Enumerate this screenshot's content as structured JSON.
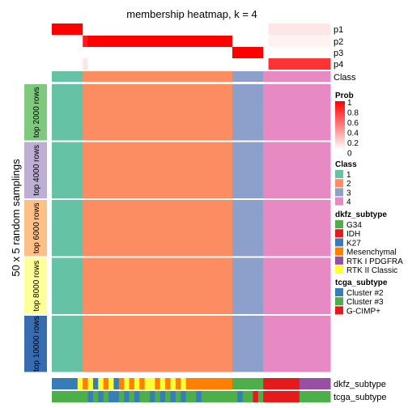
{
  "chart_data": {
    "type": "heatmap",
    "title": "membership heatmap, k = 4",
    "ylabel": "50 x 5 random samplings",
    "n_columns": 54,
    "top_rows": [
      {
        "label": "p1",
        "values": [
          1,
          1,
          1,
          1,
          1,
          1,
          0,
          0,
          0,
          0,
          0,
          0,
          0,
          0,
          0,
          0,
          0,
          0,
          0,
          0,
          0,
          0,
          0,
          0,
          0,
          0,
          0,
          0,
          0,
          0,
          0,
          0,
          0,
          0,
          0,
          0,
          0,
          0,
          0,
          0,
          0,
          0,
          0.1,
          0.1,
          0.1,
          0.1,
          0.1,
          0.1,
          0.1,
          0.1,
          0.1,
          0.1,
          0.1,
          0.1
        ]
      },
      {
        "label": "p2",
        "values": [
          0,
          0,
          0,
          0,
          0,
          0,
          0.9,
          1,
          1,
          1,
          1,
          1,
          1,
          1,
          1,
          1,
          1,
          1,
          1,
          1,
          1,
          1,
          1,
          1,
          1,
          1,
          1,
          1,
          1,
          1,
          1,
          1,
          1,
          1,
          1,
          0,
          0,
          0,
          0,
          0,
          0,
          0,
          0.05,
          0.05,
          0.05,
          0.05,
          0.05,
          0.05,
          0.05,
          0.05,
          0.05,
          0.05,
          0.05,
          0.05
        ]
      },
      {
        "label": "p3",
        "values": [
          0,
          0,
          0,
          0,
          0,
          0,
          0,
          0,
          0,
          0,
          0,
          0,
          0,
          0,
          0,
          0,
          0,
          0,
          0,
          0,
          0,
          0,
          0,
          0,
          0,
          0,
          0,
          0,
          0,
          0,
          0,
          0,
          0,
          0,
          0,
          1,
          1,
          1,
          1,
          1,
          1,
          0,
          0,
          0,
          0,
          0,
          0,
          0,
          0,
          0,
          0,
          0,
          0,
          0
        ]
      },
      {
        "label": "p4",
        "values": [
          0,
          0,
          0,
          0,
          0,
          0,
          0.1,
          0,
          0,
          0,
          0,
          0,
          0,
          0,
          0,
          0,
          0,
          0,
          0,
          0,
          0,
          0,
          0,
          0,
          0,
          0,
          0,
          0,
          0,
          0,
          0,
          0,
          0,
          0,
          0,
          0,
          0,
          0,
          0,
          0,
          0,
          0,
          0.8,
          0.8,
          0.8,
          0.8,
          0.8,
          0.8,
          0.8,
          0.8,
          0.8,
          0.8,
          0.8,
          0.8
        ]
      }
    ],
    "class_row": {
      "label": "Class",
      "values": [
        1,
        1,
        1,
        1,
        1,
        1,
        2,
        2,
        2,
        2,
        2,
        2,
        2,
        2,
        2,
        2,
        2,
        2,
        2,
        2,
        2,
        2,
        2,
        2,
        2,
        2,
        2,
        2,
        2,
        2,
        2,
        2,
        2,
        2,
        2,
        3,
        3,
        3,
        3,
        3,
        3,
        4,
        4,
        4,
        4,
        4,
        4,
        4,
        4,
        4,
        4,
        4,
        4,
        4
      ]
    },
    "sampling_groups": [
      {
        "label": "top 2000 rows",
        "color": "#7fc97f"
      },
      {
        "label": "top 4000 rows",
        "color": "#beaed4"
      },
      {
        "label": "top 6000 rows",
        "color": "#fdc086"
      },
      {
        "label": "top 8000 rows",
        "color": "#ffff99"
      },
      {
        "label": "top 10000 rows",
        "color": "#386cb0"
      }
    ],
    "bottom_rows": [
      {
        "label": "dkfz_subtype",
        "values": [
          "K27",
          "K27",
          "K27",
          "K27",
          "K27",
          "RTK II Classic",
          "Mesenchymal",
          "RTK II Classic",
          "K27",
          "RTK II Classic",
          "Mesenchymal",
          "RTK II Classic",
          "K27",
          "Mesenchymal",
          "RTK II Classic",
          "Mesenchymal",
          "RTK II Classic",
          "Mesenchymal",
          "RTK II Classic",
          "RTK II Classic",
          "Mesenchymal",
          "RTK II Classic",
          "Mesenchymal",
          "RTK II Classic",
          "Mesenchymal",
          "RTK II Classic",
          "Mesenchymal",
          "Mesenchymal",
          "Mesenchymal",
          "Mesenchymal",
          "Mesenchymal",
          "Mesenchymal",
          "Mesenchymal",
          "Mesenchymal",
          "Mesenchymal",
          "G34",
          "G34",
          "G34",
          "G34",
          "G34",
          "G34",
          "IDH",
          "IDH",
          "IDH",
          "IDH",
          "IDH",
          "IDH",
          "IDH",
          "RTK I PDGFRA",
          "RTK I PDGFRA",
          "RTK I PDGFRA",
          "RTK I PDGFRA",
          "RTK I PDGFRA",
          "RTK I PDGFRA"
        ]
      },
      {
        "label": "tcga_subtype",
        "values": [
          "Cluster #3",
          "Cluster #3",
          "Cluster #3",
          "Cluster #3",
          "Cluster #3",
          "Cluster #3",
          "Cluster #3",
          "Cluster #2",
          "Cluster #3",
          "Cluster #2",
          "Cluster #3",
          "Cluster #2",
          "Cluster #2",
          "Cluster #3",
          "Cluster #2",
          "Cluster #3",
          "Cluster #2",
          "Cluster #3",
          "Cluster #3",
          "Cluster #2",
          "Cluster #3",
          "Cluster #2",
          "Cluster #3",
          "Cluster #2",
          "Cluster #3",
          "Cluster #2",
          "Cluster #3",
          "Cluster #3",
          "Cluster #2",
          "Cluster #3",
          "Cluster #3",
          "Cluster #3",
          "Cluster #3",
          "Cluster #3",
          "Cluster #3",
          "Cluster #3",
          "Cluster #2",
          "Cluster #3",
          "Cluster #3",
          "G-CIMP+",
          "Cluster #3",
          "G-CIMP+",
          "G-CIMP+",
          "G-CIMP+",
          "G-CIMP+",
          "G-CIMP+",
          "G-CIMP+",
          "G-CIMP+",
          "Cluster #3",
          "Cluster #3",
          "Cluster #3",
          "Cluster #3",
          "Cluster #3",
          "Cluster #3"
        ]
      }
    ],
    "legends": [
      {
        "title": "Prob",
        "type": "gradient",
        "ticks": [
          "1",
          "0.8",
          "0.6",
          "0.4",
          "0.2",
          "0"
        ],
        "color_low": "#ffffff",
        "color_high": "#ff0000"
      },
      {
        "title": "Class",
        "type": "discrete",
        "items": [
          {
            "label": "1",
            "color": "#66c2a5"
          },
          {
            "label": "2",
            "color": "#fc8d62"
          },
          {
            "label": "3",
            "color": "#8da0cb"
          },
          {
            "label": "4",
            "color": "#e78ac3"
          }
        ]
      },
      {
        "title": "dkfz_subtype",
        "type": "discrete",
        "items": [
          {
            "label": "G34",
            "color": "#4daf4a"
          },
          {
            "label": "IDH",
            "color": "#e41a1c"
          },
          {
            "label": "K27",
            "color": "#377eb8"
          },
          {
            "label": "Mesenchymal",
            "color": "#ff7f00"
          },
          {
            "label": "RTK I PDGFRA",
            "color": "#984ea3"
          },
          {
            "label": "RTK II Classic",
            "color": "#ffff33"
          }
        ]
      },
      {
        "title": "tcga_subtype",
        "type": "discrete",
        "items": [
          {
            "label": "Cluster #2",
            "color": "#377eb8"
          },
          {
            "label": "Cluster #3",
            "color": "#4daf4a"
          },
          {
            "label": "G-CIMP+",
            "color": "#e41a1c"
          }
        ]
      }
    ]
  }
}
